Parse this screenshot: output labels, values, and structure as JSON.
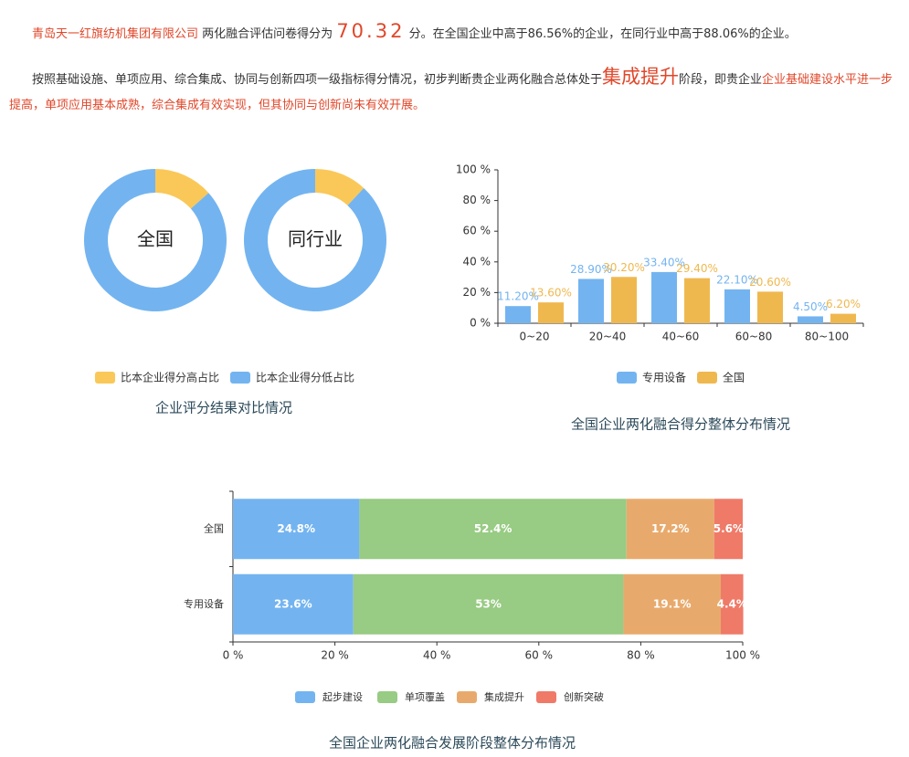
{
  "report": {
    "p1": {
      "company": "青岛天一红旗纺机集团有限公司",
      "text1": "两化融合评估问卷得分为",
      "score": "70.32",
      "text2": "分。在全国企业中高于86.56%的企业，在同行业中高于88.06%的企业。"
    },
    "p2": {
      "text1": "按照基础设施、单项应用、综合集成、协同与创新四项一级指标得分情况，初步判断贵企业两化融合总体处于",
      "stage": "集成提升",
      "text2": "阶段，即贵企业",
      "conclusion": "企业基础建设水平进一步提高，单项应用基本成熟，综合集成有效实现，但其协同与创新尚未有效开展。"
    }
  },
  "chart_data": [
    {
      "type": "pie",
      "title": "企业评分结果对比情况",
      "categories": [
        "比本企业得分高占比",
        "比本企业得分低占比"
      ],
      "colors": [
        "#fac858",
        "#73b4f0"
      ],
      "series": [
        {
          "name": "全国",
          "values": [
            13.44,
            86.56
          ]
        },
        {
          "name": "同行业",
          "values": [
            11.94,
            88.06
          ]
        }
      ]
    },
    {
      "type": "bar",
      "title": "全国企业两化融合得分整体分布情况",
      "categories": [
        "0~20",
        "20~40",
        "40~60",
        "60~80",
        "80~100"
      ],
      "series": [
        {
          "name": "专用设备",
          "color": "#73b4f0",
          "values": [
            11.2,
            28.9,
            33.4,
            22.1,
            4.5
          ],
          "value_labels": [
            "11.20%",
            "28.90%",
            "33.40%",
            "22.10%",
            "4.50%"
          ]
        },
        {
          "name": "全国",
          "color": "#efb84f",
          "values": [
            13.6,
            30.2,
            29.4,
            20.6,
            6.2
          ],
          "value_labels": [
            "13.60%",
            "30.20%",
            "29.40%",
            "20.60%",
            "6.20%"
          ]
        }
      ],
      "ylim": [
        0,
        100
      ],
      "yticks": [
        {
          "value": 0,
          "label": "0 %"
        },
        {
          "value": 20,
          "label": "20 %"
        },
        {
          "value": 40,
          "label": "40 %"
        },
        {
          "value": 60,
          "label": "60 %"
        },
        {
          "value": 80,
          "label": "80 %"
        },
        {
          "value": 100,
          "label": "100 %"
        }
      ],
      "grid": false
    },
    {
      "type": "stacked-hbar",
      "title": "全国企业两化融合发展阶段整体分布情况",
      "categories": [
        "全国",
        "专用设备"
      ],
      "series": [
        {
          "name": "起步建设",
          "color": "#73b4f0",
          "values": [
            24.8,
            23.6
          ],
          "value_labels": [
            "24.8%",
            "23.6%"
          ]
        },
        {
          "name": "单项覆盖",
          "color": "#98cb83",
          "values": [
            52.4,
            53
          ],
          "value_labels": [
            "52.4%",
            "53%"
          ]
        },
        {
          "name": "集成提升",
          "color": "#e8aa6c",
          "values": [
            17.2,
            19.1
          ],
          "value_labels": [
            "17.2%",
            "19.1%"
          ]
        },
        {
          "name": "创新突破",
          "color": "#ef7a68",
          "values": [
            5.6,
            4.4
          ],
          "value_labels": [
            "5.6%",
            "4.4%"
          ]
        }
      ],
      "xlim": [
        0,
        100
      ],
      "xticks": [
        {
          "value": 0,
          "label": "0 %"
        },
        {
          "value": 20,
          "label": "20 %"
        },
        {
          "value": 40,
          "label": "40 %"
        },
        {
          "value": 60,
          "label": "60 %"
        },
        {
          "value": 80,
          "label": "80 %"
        },
        {
          "value": 100,
          "label": "100 %"
        }
      ]
    }
  ]
}
